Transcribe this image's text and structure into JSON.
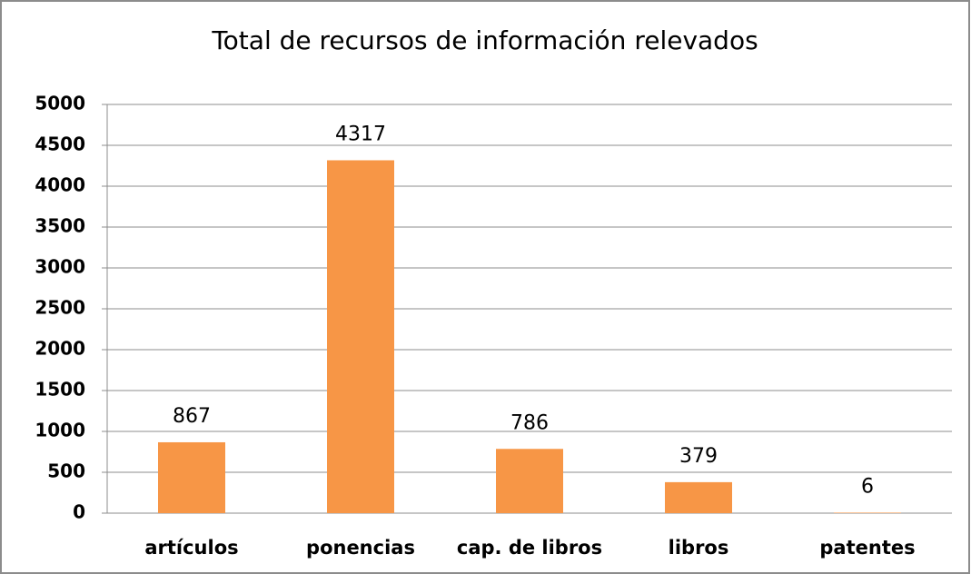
{
  "chart_data": {
    "type": "bar",
    "title": "Total de recursos de información relevados",
    "categories": [
      "artículos",
      "ponencias",
      "cap. de libros",
      "libros",
      "patentes"
    ],
    "values": [
      867,
      4317,
      786,
      379,
      6
    ],
    "color": "#f79646",
    "ylim": [
      0,
      5000
    ],
    "yticks": [
      0,
      500,
      1000,
      1500,
      2000,
      2500,
      3000,
      3500,
      4000,
      4500,
      5000
    ],
    "grid": true
  }
}
